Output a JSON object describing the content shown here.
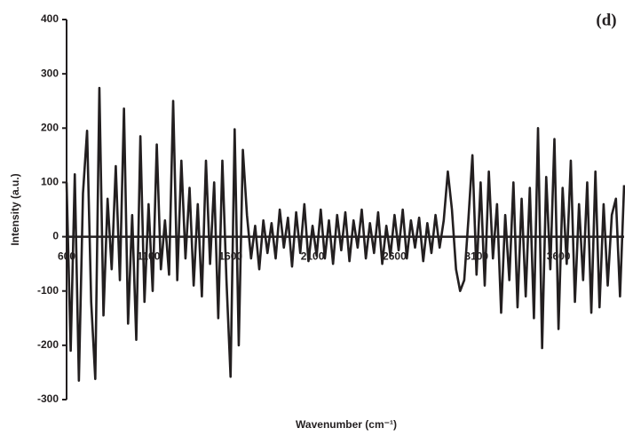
{
  "chart_data": {
    "type": "line",
    "annotation": "(d)",
    "xlabel": "Wavenumber (cm⁻¹)",
    "ylabel": "Intensity (a.u.)",
    "xlim": [
      600,
      4000
    ],
    "xticks": [
      600,
      1100,
      1600,
      2100,
      2600,
      3100,
      3600
    ],
    "ylim": [
      -300,
      400
    ],
    "yticks": [
      -300,
      -200,
      -100,
      0,
      100,
      200,
      300,
      400
    ],
    "series": [
      {
        "name": "Intensity",
        "color": "#231f20",
        "x": [
          600,
          625,
          650,
          675,
          700,
          725,
          750,
          775,
          800,
          825,
          850,
          875,
          900,
          925,
          950,
          975,
          1000,
          1025,
          1050,
          1075,
          1100,
          1125,
          1150,
          1175,
          1200,
          1225,
          1250,
          1275,
          1300,
          1325,
          1350,
          1375,
          1400,
          1425,
          1450,
          1475,
          1500,
          1525,
          1550,
          1575,
          1600,
          1625,
          1650,
          1675,
          1700,
          1725,
          1750,
          1775,
          1800,
          1825,
          1850,
          1875,
          1900,
          1925,
          1950,
          1975,
          2000,
          2025,
          2050,
          2075,
          2100,
          2125,
          2150,
          2175,
          2200,
          2225,
          2250,
          2275,
          2300,
          2325,
          2350,
          2375,
          2400,
          2425,
          2450,
          2475,
          2500,
          2525,
          2550,
          2575,
          2600,
          2625,
          2650,
          2675,
          2700,
          2725,
          2750,
          2775,
          2800,
          2825,
          2850,
          2875,
          2900,
          2925,
          2950,
          2975,
          3000,
          3025,
          3050,
          3075,
          3100,
          3125,
          3150,
          3175,
          3200,
          3225,
          3250,
          3275,
          3300,
          3325,
          3350,
          3375,
          3400,
          3425,
          3450,
          3475,
          3500,
          3525,
          3550,
          3575,
          3600,
          3625,
          3650,
          3675,
          3700,
          3725,
          3750,
          3775,
          3800,
          3825,
          3850,
          3875,
          3900,
          3925,
          3950,
          3975,
          4000
        ],
        "values": [
          100,
          -210,
          115,
          -265,
          80,
          195,
          -120,
          -262,
          274,
          -145,
          70,
          -60,
          130,
          -80,
          236,
          -160,
          40,
          -190,
          185,
          -120,
          60,
          -100,
          170,
          -60,
          30,
          -70,
          250,
          -80,
          140,
          -40,
          90,
          -90,
          60,
          -110,
          140,
          -50,
          100,
          -150,
          140,
          -80,
          -258,
          198,
          -200,
          160,
          40,
          -40,
          20,
          -60,
          30,
          -30,
          25,
          -40,
          50,
          -20,
          35,
          -55,
          45,
          -30,
          60,
          -45,
          20,
          -35,
          50,
          -40,
          30,
          -50,
          40,
          -25,
          45,
          -45,
          30,
          -20,
          50,
          -40,
          25,
          -30,
          45,
          -50,
          20,
          -35,
          40,
          -25,
          50,
          -40,
          30,
          -20,
          35,
          -45,
          25,
          -30,
          40,
          -20,
          30,
          120,
          50,
          -60,
          -100,
          -80,
          30,
          150,
          -70,
          100,
          -90,
          120,
          -40,
          60,
          -140,
          40,
          -80,
          100,
          -130,
          70,
          -110,
          90,
          -150,
          200,
          -205,
          110,
          -60,
          180,
          -170,
          90,
          -50,
          140,
          -120,
          60,
          -80,
          100,
          -140,
          120,
          -130,
          60,
          -90,
          40,
          70,
          -110,
          95
        ]
      }
    ]
  }
}
